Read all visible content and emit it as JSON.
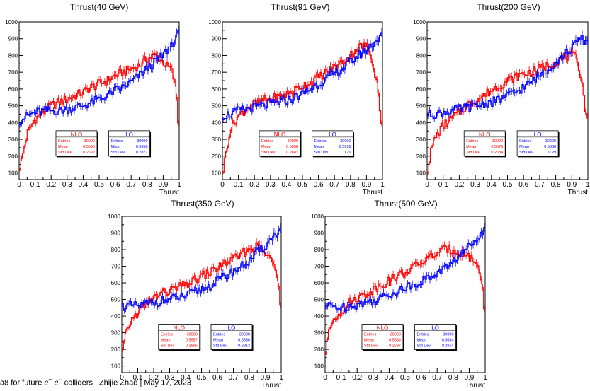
{
  "colors": {
    "nlo": "#ff0000",
    "lo": "#0000ff",
    "axis": "#000000"
  },
  "footer": {
    "prefix": "a8 for future",
    "math_e": "e",
    "plus": "+",
    "minus": "−",
    "suffix": "colliders",
    "sep1": "|",
    "author": "Zhijie Zhao",
    "sep2": "|",
    "date": "May 17, 2023"
  },
  "chart_data": [
    {
      "type": "line",
      "title": "Thrust(40 GeV)",
      "xlabel": "Thrust",
      "ylabel": "",
      "xlim": [
        0,
        1
      ],
      "ylim": [
        60,
        1000
      ],
      "xticks": [
        "0",
        "0.1",
        "0.2",
        "0.3",
        "0.4",
        "0.5",
        "0.6",
        "0.7",
        "0.8",
        "0.9",
        "1"
      ],
      "yticks": [
        "100",
        "200",
        "300",
        "400",
        "500",
        "600",
        "700",
        "800",
        "900",
        "1000"
      ],
      "series": [
        {
          "name": "NLO",
          "x": [
            0,
            0.02,
            0.05,
            0.1,
            0.15,
            0.2,
            0.25,
            0.3,
            0.35,
            0.4,
            0.45,
            0.5,
            0.55,
            0.6,
            0.65,
            0.7,
            0.75,
            0.8,
            0.85,
            0.87,
            0.9,
            0.93,
            0.95,
            0.97,
            0.99,
            1.0
          ],
          "y": [
            120,
            190,
            330,
            420,
            460,
            500,
            520,
            540,
            560,
            580,
            610,
            630,
            650,
            680,
            700,
            720,
            740,
            780,
            800,
            790,
            760,
            730,
            720,
            650,
            520,
            300
          ]
        },
        {
          "name": "LO",
          "x": [
            0,
            0.05,
            0.1,
            0.15,
            0.2,
            0.25,
            0.3,
            0.35,
            0.4,
            0.45,
            0.5,
            0.55,
            0.6,
            0.65,
            0.7,
            0.75,
            0.8,
            0.85,
            0.9,
            0.95,
            1.0
          ],
          "y": [
            410,
            440,
            460,
            470,
            470,
            470,
            480,
            490,
            500,
            520,
            540,
            560,
            590,
            610,
            640,
            680,
            720,
            760,
            800,
            860,
            930
          ]
        }
      ],
      "stats": [
        {
          "name": "NLO",
          "entries": "30000",
          "mean": "0.5595",
          "std_dev": "0.2622"
        },
        {
          "name": "LO",
          "entries": "30000",
          "mean": "0.5658",
          "std_dev": "0.2877"
        }
      ]
    },
    {
      "type": "line",
      "title": "Thrust(91 GeV)",
      "xlabel": "Thrust",
      "ylabel": "",
      "xlim": [
        0,
        1
      ],
      "ylim": [
        60,
        1000
      ],
      "xticks": [
        "0",
        "0.1",
        "0.2",
        "0.3",
        "0.4",
        "0.5",
        "0.6",
        "0.7",
        "0.8",
        "0.9",
        "1"
      ],
      "yticks": [
        "100",
        "200",
        "300",
        "400",
        "500",
        "600",
        "700",
        "800",
        "900",
        "1000"
      ],
      "series": [
        {
          "name": "NLO",
          "x": [
            0,
            0.02,
            0.05,
            0.1,
            0.15,
            0.2,
            0.25,
            0.3,
            0.35,
            0.4,
            0.45,
            0.5,
            0.55,
            0.6,
            0.65,
            0.7,
            0.75,
            0.8,
            0.85,
            0.9,
            0.93,
            0.95,
            0.97,
            0.99,
            1.0
          ],
          "y": [
            90,
            200,
            360,
            440,
            480,
            510,
            530,
            540,
            550,
            570,
            590,
            620,
            640,
            670,
            700,
            730,
            760,
            800,
            850,
            860,
            800,
            720,
            620,
            450,
            330
          ]
        },
        {
          "name": "LO",
          "x": [
            0,
            0.05,
            0.1,
            0.15,
            0.2,
            0.25,
            0.3,
            0.35,
            0.4,
            0.45,
            0.5,
            0.55,
            0.6,
            0.65,
            0.7,
            0.75,
            0.8,
            0.85,
            0.9,
            0.95,
            1.0
          ],
          "y": [
            440,
            450,
            470,
            480,
            490,
            500,
            510,
            520,
            530,
            550,
            570,
            600,
            630,
            660,
            690,
            720,
            760,
            800,
            830,
            880,
            920
          ]
        }
      ],
      "stats": [
        {
          "name": "NLO",
          "entries": "30000",
          "mean": "0.5558",
          "std_dev": "0.2682"
        },
        {
          "name": "LO",
          "entries": "30000",
          "mean": "0.5618",
          "std_dev": "0.29"
        }
      ]
    },
    {
      "type": "line",
      "title": "Thrust(200 GeV)",
      "xlabel": "Thrust",
      "ylabel": "",
      "xlim": [
        0,
        1
      ],
      "ylim": [
        60,
        1000
      ],
      "xticks": [
        "0",
        "0.1",
        "0.2",
        "0.3",
        "0.4",
        "0.5",
        "0.6",
        "0.7",
        "0.8",
        "0.9",
        "1"
      ],
      "yticks": [
        "100",
        "200",
        "300",
        "400",
        "500",
        "600",
        "700",
        "800",
        "900",
        "1000"
      ],
      "series": [
        {
          "name": "NLO",
          "x": [
            0,
            0.02,
            0.05,
            0.1,
            0.15,
            0.2,
            0.25,
            0.3,
            0.35,
            0.4,
            0.45,
            0.5,
            0.55,
            0.6,
            0.65,
            0.7,
            0.75,
            0.8,
            0.85,
            0.9,
            0.93,
            0.95,
            0.97,
            0.99,
            1.0
          ],
          "y": [
            90,
            210,
            310,
            380,
            420,
            460,
            500,
            530,
            560,
            590,
            620,
            650,
            670,
            690,
            700,
            720,
            740,
            760,
            790,
            800,
            780,
            720,
            600,
            450,
            380
          ]
        },
        {
          "name": "LO",
          "x": [
            0,
            0.05,
            0.1,
            0.15,
            0.2,
            0.25,
            0.3,
            0.35,
            0.4,
            0.45,
            0.5,
            0.55,
            0.6,
            0.65,
            0.7,
            0.75,
            0.8,
            0.85,
            0.9,
            0.95,
            1.0
          ],
          "y": [
            450,
            450,
            460,
            470,
            480,
            490,
            500,
            510,
            520,
            540,
            560,
            580,
            610,
            640,
            680,
            720,
            760,
            800,
            840,
            900,
            880
          ]
        }
      ],
      "stats": [
        {
          "name": "NLO",
          "entries": "30000",
          "mean": "0.5579",
          "std_dev": "0.2684"
        },
        {
          "name": "LO",
          "entries": "30000",
          "mean": "0.5636",
          "std_dev": "0.29"
        }
      ]
    },
    {
      "type": "line",
      "title": "Thrust(350 GeV)",
      "xlabel": "Thrust",
      "ylabel": "",
      "xlim": [
        0,
        1
      ],
      "ylim": [
        60,
        1000
      ],
      "xticks": [
        "0",
        "0.1",
        "0.2",
        "0.3",
        "0.4",
        "0.5",
        "0.6",
        "0.7",
        "0.8",
        "0.9",
        "1"
      ],
      "yticks": [
        "100",
        "200",
        "300",
        "400",
        "500",
        "600",
        "700",
        "800",
        "900",
        "1000"
      ],
      "series": [
        {
          "name": "NLO",
          "x": [
            0,
            0.02,
            0.05,
            0.1,
            0.15,
            0.2,
            0.25,
            0.3,
            0.35,
            0.4,
            0.45,
            0.5,
            0.55,
            0.6,
            0.65,
            0.7,
            0.75,
            0.8,
            0.85,
            0.9,
            0.93,
            0.95,
            0.97,
            0.99,
            1.0
          ],
          "y": [
            160,
            260,
            360,
            420,
            470,
            510,
            540,
            550,
            570,
            590,
            610,
            640,
            660,
            690,
            720,
            740,
            770,
            800,
            820,
            780,
            740,
            720,
            690,
            560,
            420
          ]
        },
        {
          "name": "LO",
          "x": [
            0,
            0.05,
            0.1,
            0.15,
            0.2,
            0.25,
            0.3,
            0.35,
            0.4,
            0.45,
            0.5,
            0.55,
            0.6,
            0.65,
            0.7,
            0.75,
            0.8,
            0.85,
            0.9,
            0.95,
            1.0
          ],
          "y": [
            460,
            460,
            460,
            470,
            480,
            490,
            500,
            510,
            520,
            540,
            560,
            580,
            610,
            640,
            670,
            700,
            730,
            780,
            820,
            880,
            920
          ]
        }
      ],
      "stats": [
        {
          "name": "NLO",
          "entries": "30000",
          "mean": "0.5587",
          "std_dev": "0.2696"
        },
        {
          "name": "LO",
          "entries": "30000",
          "mean": "0.5636",
          "std_dev": "0.2913"
        }
      ]
    },
    {
      "type": "line",
      "title": "Thrust(500 GeV)",
      "xlabel": "Thrust",
      "ylabel": "",
      "xlim": [
        0,
        1
      ],
      "ylim": [
        60,
        1000
      ],
      "xticks": [
        "0",
        "0.1",
        "0.2",
        "0.3",
        "0.4",
        "0.5",
        "0.6",
        "0.7",
        "0.8",
        "0.9",
        "1"
      ],
      "yticks": [
        "100",
        "200",
        "300",
        "400",
        "500",
        "600",
        "700",
        "800",
        "900",
        "1000"
      ],
      "series": [
        {
          "name": "NLO",
          "x": [
            0,
            0.02,
            0.05,
            0.1,
            0.15,
            0.2,
            0.25,
            0.3,
            0.35,
            0.4,
            0.45,
            0.5,
            0.55,
            0.6,
            0.65,
            0.7,
            0.75,
            0.8,
            0.85,
            0.9,
            0.93,
            0.95,
            0.97,
            0.99,
            1.0
          ],
          "y": [
            160,
            280,
            380,
            430,
            480,
            510,
            530,
            560,
            590,
            610,
            640,
            660,
            690,
            720,
            750,
            780,
            800,
            800,
            780,
            760,
            730,
            720,
            650,
            520,
            420
          ]
        },
        {
          "name": "LO",
          "x": [
            0,
            0.05,
            0.1,
            0.15,
            0.2,
            0.25,
            0.3,
            0.35,
            0.4,
            0.45,
            0.5,
            0.55,
            0.6,
            0.65,
            0.7,
            0.75,
            0.8,
            0.85,
            0.9,
            0.95,
            1.0
          ],
          "y": [
            460,
            460,
            450,
            460,
            470,
            480,
            490,
            510,
            530,
            550,
            570,
            590,
            610,
            630,
            660,
            690,
            730,
            770,
            820,
            880,
            920
          ]
        }
      ],
      "stats": [
        {
          "name": "NLO",
          "entries": "30000",
          "mean": "0.5584",
          "std_dev": "0.2697"
        },
        {
          "name": "LO",
          "entries": "30000",
          "mean": "0.5634",
          "std_dev": "0.2914"
        }
      ]
    }
  ]
}
